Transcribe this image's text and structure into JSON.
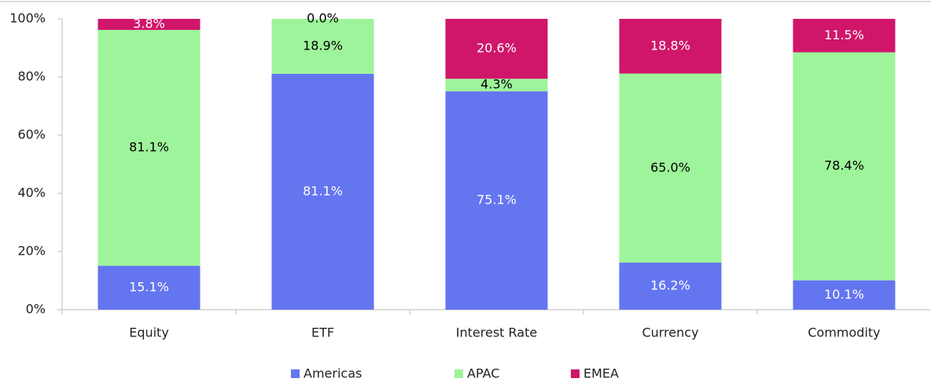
{
  "chart_data": {
    "type": "stacked_bar",
    "categories": [
      "Equity",
      "ETF",
      "Interest Rate",
      "Currency",
      "Commodity"
    ],
    "series": [
      {
        "name": "Americas",
        "color": "#6475f0",
        "label_color": "#ffffff",
        "values": [
          15.1,
          81.1,
          75.1,
          16.2,
          10.1
        ],
        "value_labels": [
          "15.1%",
          "81.1%",
          "75.1%",
          "16.2%",
          "10.1%"
        ]
      },
      {
        "name": "APAC",
        "color": "#9ef49a",
        "label_color": "#000000",
        "values": [
          81.1,
          18.9,
          4.3,
          65.0,
          78.4
        ],
        "value_labels": [
          "81.1%",
          "18.9%",
          "4.3%",
          "65.0%",
          "78.4%"
        ]
      },
      {
        "name": "EMEA",
        "color": "#d0166a",
        "label_color": "#ffffff",
        "values": [
          3.8,
          0.0,
          20.6,
          18.8,
          11.5
        ],
        "value_labels": [
          "3.8%",
          "0.0%",
          "20.6%",
          "18.8%",
          "11.5%"
        ]
      }
    ],
    "ylim": [
      0,
      100
    ],
    "yticks": [
      {
        "value": 0,
        "label": "0%"
      },
      {
        "value": 20,
        "label": "20%"
      },
      {
        "value": 40,
        "label": "40%"
      },
      {
        "value": 60,
        "label": "60%"
      },
      {
        "value": 80,
        "label": "80%"
      },
      {
        "value": 100,
        "label": "100%"
      }
    ],
    "legend": "bottom"
  }
}
